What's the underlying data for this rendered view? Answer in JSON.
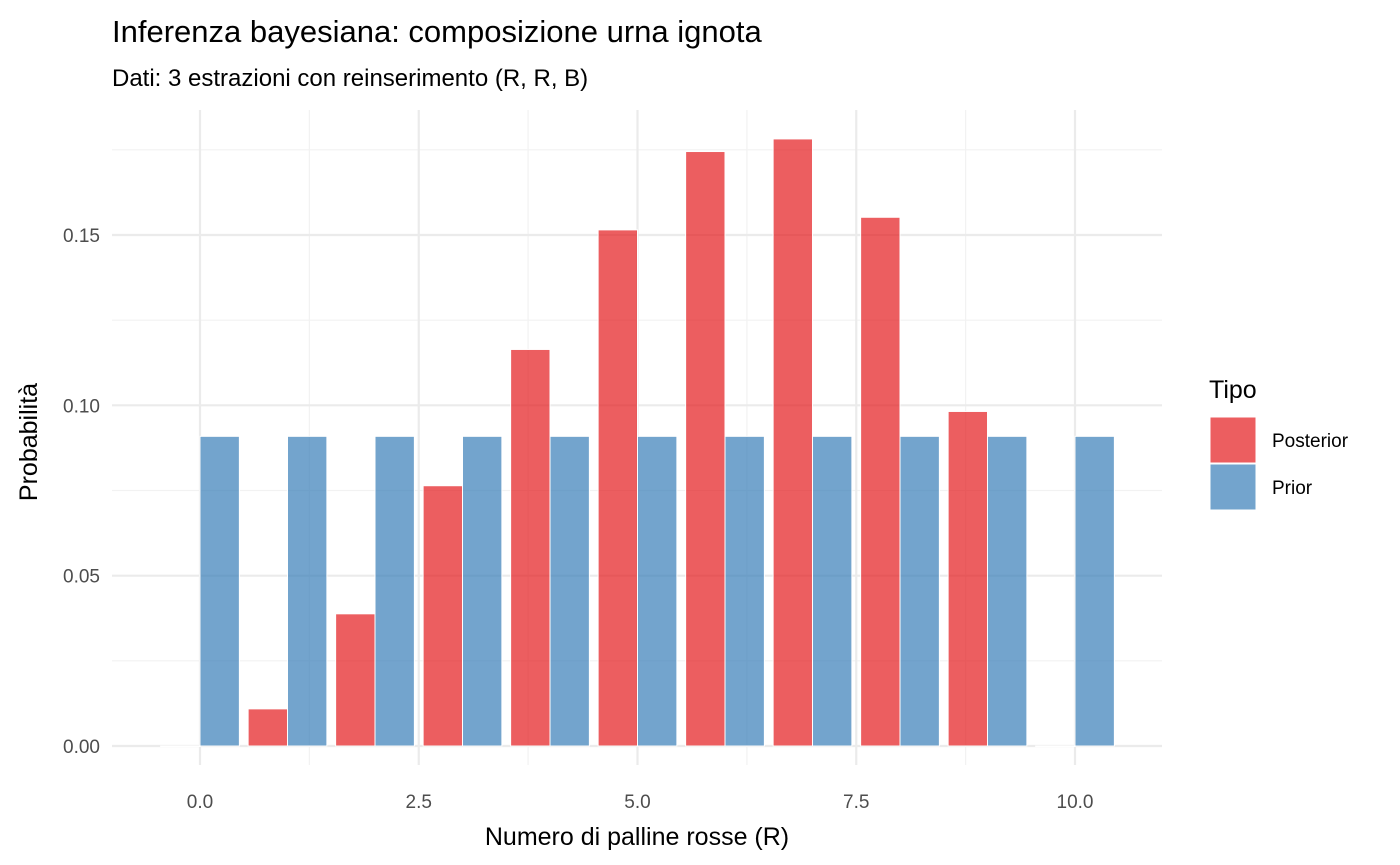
{
  "chart_data": {
    "type": "bar",
    "title": "Inferenza bayesiana: composizione urna ignota",
    "subtitle": "Dati: 3 estrazioni con reinserimento (R, R, B)",
    "xlabel": "Numero di palline rosse (R)",
    "ylabel": "Probabilità",
    "x": [
      0,
      1,
      2,
      3,
      4,
      5,
      6,
      7,
      8,
      9,
      10
    ],
    "series": [
      {
        "name": "Posterior",
        "color": "#E41A1C",
        "values": [
          0,
          0.0109,
          0.0388,
          0.0764,
          0.1164,
          0.1515,
          0.1745,
          0.1782,
          0.1552,
          0.0982,
          0
        ]
      },
      {
        "name": "Prior",
        "color": "#377EB8",
        "values": [
          0.0909,
          0.0909,
          0.0909,
          0.0909,
          0.0909,
          0.0909,
          0.0909,
          0.0909,
          0.0909,
          0.0909,
          0.0909
        ]
      }
    ],
    "xlim": [
      -1.0,
      11.0
    ],
    "ylim": [
      0,
      0.187
    ],
    "xticks": [
      0,
      2.5,
      5,
      7.5,
      10
    ],
    "xtick_labels": [
      "0.0",
      "2.5",
      "5.0",
      "7.5",
      "10.0"
    ],
    "yticks": [
      0,
      0.05,
      0.1,
      0.15
    ],
    "ytick_labels": [
      "0.00",
      "0.05",
      "0.10",
      "0.15"
    ],
    "grid": true,
    "legend": {
      "title": "Tipo",
      "position": "right",
      "entries": [
        "Posterior",
        "Prior"
      ]
    }
  }
}
